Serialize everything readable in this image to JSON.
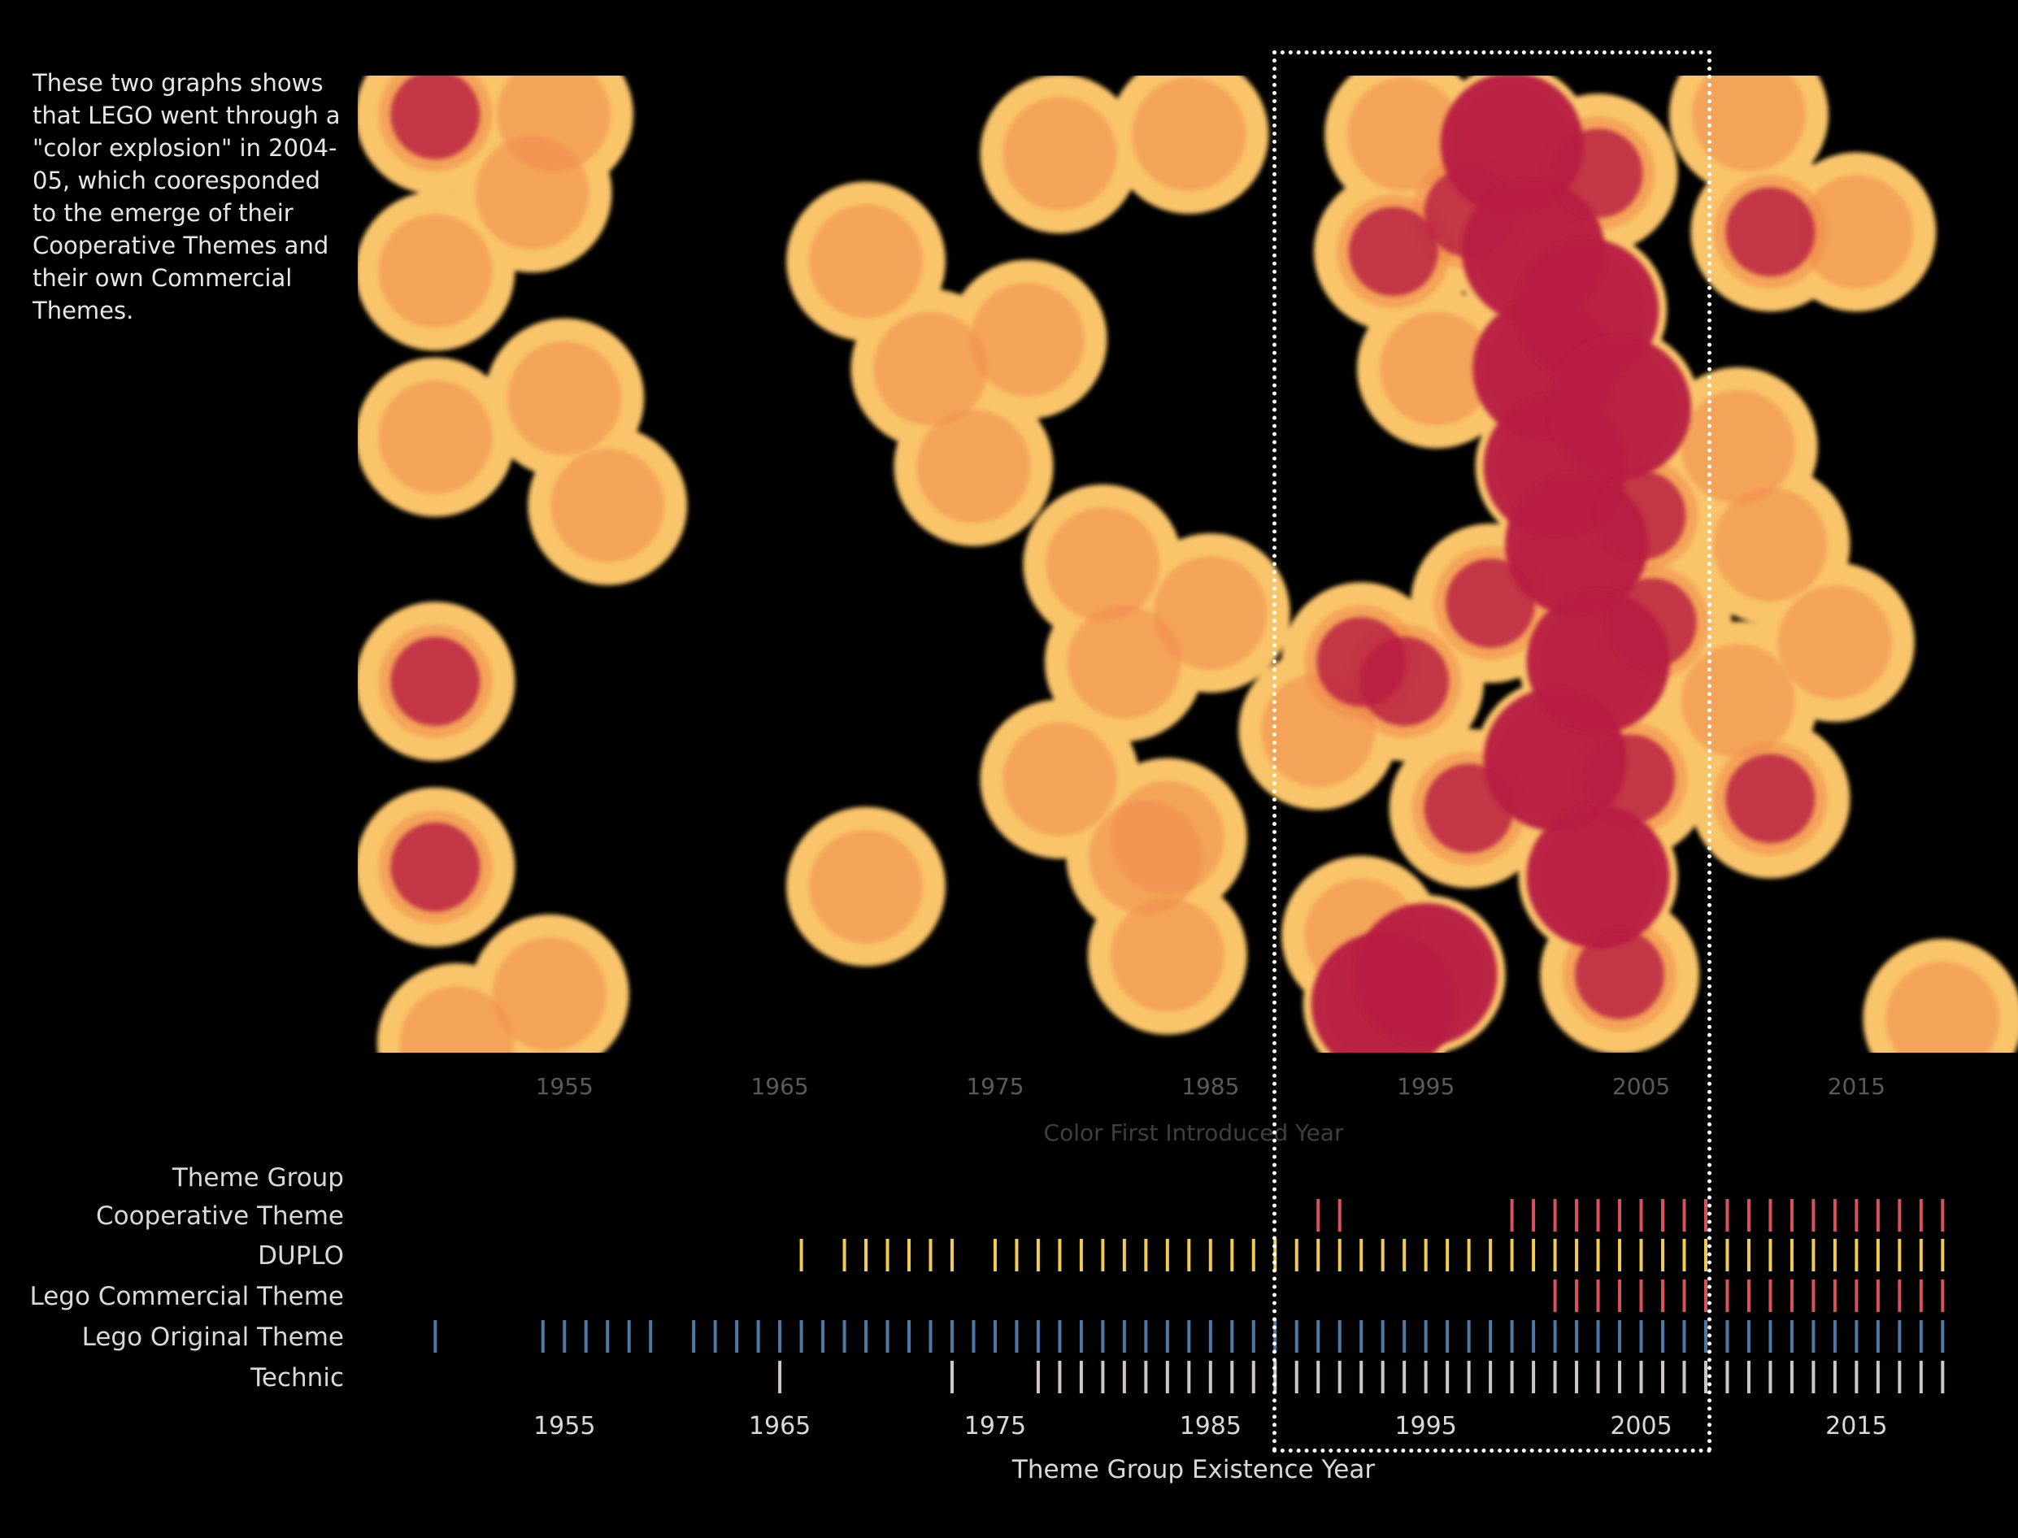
{
  "annotation": "These two graphs shows\nthat LEGO went through a\n\"color explosion\" in 2004-\n05, which cooresponded\nto the emerge of their\nCooperative Themes and\ntheir own Commercial\nThemes.",
  "colors": {
    "background": "#000000",
    "heat_low": "#f9c46b",
    "heat_mid": "#f08a4b",
    "heat_high": "#b81f42",
    "axis_text": "#5a5a5a",
    "label_text": "#d9d9d9",
    "highlight_box": "#ffffff"
  },
  "chart_data": [
    {
      "type": "heatmap",
      "title": "",
      "xlabel": "Color First Introduced Year",
      "ylabel": "",
      "x_ticks": [
        1955,
        1965,
        1975,
        1985,
        1995,
        2005,
        2015
      ],
      "xlim": [
        1945.4,
        2022.5
      ],
      "ylim": [
        0,
        1
      ],
      "y_axis_shown": false,
      "points": [
        {
          "x": 1949.0,
          "y": 0.96,
          "w": 1.4
        },
        {
          "x": 1949.0,
          "y": 0.8,
          "w": 1.0
        },
        {
          "x": 1949.0,
          "y": 0.63,
          "w": 1.0
        },
        {
          "x": 1949.0,
          "y": 0.38,
          "w": 1.5
        },
        {
          "x": 1949.0,
          "y": 0.19,
          "w": 1.5
        },
        {
          "x": 1950.0,
          "y": 0.01,
          "w": 1.0
        },
        {
          "x": 1954.5,
          "y": 0.96,
          "w": 1.0
        },
        {
          "x": 1953.5,
          "y": 0.88,
          "w": 1.0
        },
        {
          "x": 1955.0,
          "y": 0.67,
          "w": 1.0
        },
        {
          "x": 1957.0,
          "y": 0.56,
          "w": 1.0
        },
        {
          "x": 1954.3,
          "y": 0.06,
          "w": 1.0
        },
        {
          "x": 1969.0,
          "y": 0.81,
          "w": 1.0
        },
        {
          "x": 1969.0,
          "y": 0.17,
          "w": 1.0
        },
        {
          "x": 1972.0,
          "y": 0.7,
          "w": 1.0
        },
        {
          "x": 1974.0,
          "y": 0.6,
          "w": 1.0
        },
        {
          "x": 1976.5,
          "y": 0.73,
          "w": 1.0
        },
        {
          "x": 1978.0,
          "y": 0.92,
          "w": 1.0
        },
        {
          "x": 1978.0,
          "y": 0.28,
          "w": 1.0
        },
        {
          "x": 1980.0,
          "y": 0.5,
          "w": 1.0
        },
        {
          "x": 1981.0,
          "y": 0.4,
          "w": 1.0
        },
        {
          "x": 1982.0,
          "y": 0.2,
          "w": 1.0
        },
        {
          "x": 1983.0,
          "y": 0.22,
          "w": 1.0
        },
        {
          "x": 1983.0,
          "y": 0.1,
          "w": 1.0
        },
        {
          "x": 1984.0,
          "y": 0.94,
          "w": 1.0
        },
        {
          "x": 1985.0,
          "y": 0.45,
          "w": 1.0
        },
        {
          "x": 1990.0,
          "y": 0.33,
          "w": 1.0
        },
        {
          "x": 1992.0,
          "y": 0.4,
          "w": 1.5
        },
        {
          "x": 1992.0,
          "y": 0.12,
          "w": 1.0
        },
        {
          "x": 1993.0,
          "y": 0.05,
          "w": 2.0
        },
        {
          "x": 1994.0,
          "y": 0.38,
          "w": 1.5
        },
        {
          "x": 1995.0,
          "y": 0.08,
          "w": 2.0
        },
        {
          "x": 1993.5,
          "y": 0.82,
          "w": 1.5
        },
        {
          "x": 1994.0,
          "y": 0.94,
          "w": 1.0
        },
        {
          "x": 1995.5,
          "y": 0.7,
          "w": 1.0
        },
        {
          "x": 1997.0,
          "y": 0.86,
          "w": 1.5
        },
        {
          "x": 1997.0,
          "y": 0.25,
          "w": 1.5
        },
        {
          "x": 1998.0,
          "y": 0.46,
          "w": 1.5
        },
        {
          "x": 1999.0,
          "y": 0.93,
          "w": 2.0
        },
        {
          "x": 2000.0,
          "y": 0.82,
          "w": 2.0
        },
        {
          "x": 2000.5,
          "y": 0.7,
          "w": 2.0
        },
        {
          "x": 2001.0,
          "y": 0.6,
          "w": 2.0
        },
        {
          "x": 2001.0,
          "y": 0.3,
          "w": 2.0
        },
        {
          "x": 2002.0,
          "y": 0.52,
          "w": 2.0
        },
        {
          "x": 2002.5,
          "y": 0.76,
          "w": 2.0
        },
        {
          "x": 2003.0,
          "y": 0.9,
          "w": 1.5
        },
        {
          "x": 2003.0,
          "y": 0.4,
          "w": 2.0
        },
        {
          "x": 2003.0,
          "y": 0.18,
          "w": 2.0
        },
        {
          "x": 2004.0,
          "y": 0.66,
          "w": 2.0
        },
        {
          "x": 2004.0,
          "y": 0.08,
          "w": 1.5
        },
        {
          "x": 2004.5,
          "y": 0.28,
          "w": 1.5
        },
        {
          "x": 2005.0,
          "y": 0.55,
          "w": 1.5
        },
        {
          "x": 2005.5,
          "y": 0.44,
          "w": 1.5
        },
        {
          "x": 2010.0,
          "y": 0.96,
          "w": 1.0
        },
        {
          "x": 2011.0,
          "y": 0.84,
          "w": 1.5
        },
        {
          "x": 2009.5,
          "y": 0.62,
          "w": 1.0
        },
        {
          "x": 2011.0,
          "y": 0.52,
          "w": 1.0
        },
        {
          "x": 2009.5,
          "y": 0.36,
          "w": 1.0
        },
        {
          "x": 2011.0,
          "y": 0.26,
          "w": 1.5
        },
        {
          "x": 2015.0,
          "y": 0.84,
          "w": 1.0
        },
        {
          "x": 2014.0,
          "y": 0.42,
          "w": 1.0
        },
        {
          "x": 2019.0,
          "y": 0.035,
          "w": 1.0
        }
      ]
    },
    {
      "type": "strip",
      "title": "",
      "xlabel": "Theme Group Existence Year",
      "row_header": "Theme Group",
      "x_ticks": [
        1955,
        1965,
        1975,
        1985,
        1995,
        2005,
        2015
      ],
      "xlim": [
        1945.4,
        2022.5
      ],
      "series": [
        {
          "name": "Cooperative Theme",
          "color": "#d9525a",
          "years": [
            1990,
            1991,
            1999,
            2000,
            2001,
            2002,
            2003,
            2004,
            2005,
            2006,
            2007,
            2008,
            2009,
            2010,
            2011,
            2012,
            2013,
            2014,
            2015,
            2016,
            2017,
            2018,
            2019
          ]
        },
        {
          "name": "DUPLO",
          "color": "#f2cb51",
          "years": [
            1966,
            1968,
            1969,
            1970,
            1971,
            1972,
            1973,
            1975,
            1976,
            1977,
            1978,
            1979,
            1980,
            1981,
            1982,
            1983,
            1984,
            1985,
            1986,
            1987,
            1988,
            1989,
            1990,
            1991,
            1992,
            1993,
            1994,
            1995,
            1996,
            1997,
            1998,
            1999,
            2000,
            2001,
            2002,
            2003,
            2004,
            2005,
            2006,
            2007,
            2008,
            2009,
            2010,
            2011,
            2012,
            2013,
            2014,
            2015,
            2016,
            2017,
            2018,
            2019
          ]
        },
        {
          "name": "Lego Commercial Theme",
          "color": "#d9525a",
          "years": [
            2001,
            2002,
            2003,
            2004,
            2005,
            2006,
            2007,
            2008,
            2009,
            2010,
            2011,
            2012,
            2013,
            2014,
            2015,
            2016,
            2017,
            2018,
            2019
          ]
        },
        {
          "name": "Lego Original Theme",
          "color": "#4e79a7",
          "years": [
            1949,
            1954,
            1955,
            1956,
            1957,
            1958,
            1959,
            1961,
            1962,
            1963,
            1964,
            1965,
            1966,
            1967,
            1968,
            1969,
            1970,
            1971,
            1972,
            1973,
            1974,
            1975,
            1976,
            1977,
            1978,
            1979,
            1980,
            1981,
            1982,
            1983,
            1984,
            1985,
            1986,
            1987,
            1988,
            1989,
            1990,
            1991,
            1992,
            1993,
            1994,
            1995,
            1996,
            1997,
            1998,
            1999,
            2000,
            2001,
            2002,
            2003,
            2004,
            2005,
            2006,
            2007,
            2008,
            2009,
            2010,
            2011,
            2012,
            2013,
            2014,
            2015,
            2016,
            2017,
            2018,
            2019
          ]
        },
        {
          "name": "Technic",
          "color": "#cfc7c7",
          "years": [
            1965,
            1973,
            1977,
            1978,
            1979,
            1980,
            1981,
            1982,
            1983,
            1984,
            1985,
            1986,
            1987,
            1988,
            1989,
            1990,
            1991,
            1992,
            1993,
            1994,
            1995,
            1996,
            1997,
            1998,
            1999,
            2000,
            2001,
            2002,
            2003,
            2004,
            2005,
            2006,
            2007,
            2008,
            2009,
            2010,
            2011,
            2012,
            2013,
            2014,
            2015,
            2016,
            2017,
            2018,
            2019
          ]
        }
      ]
    }
  ]
}
